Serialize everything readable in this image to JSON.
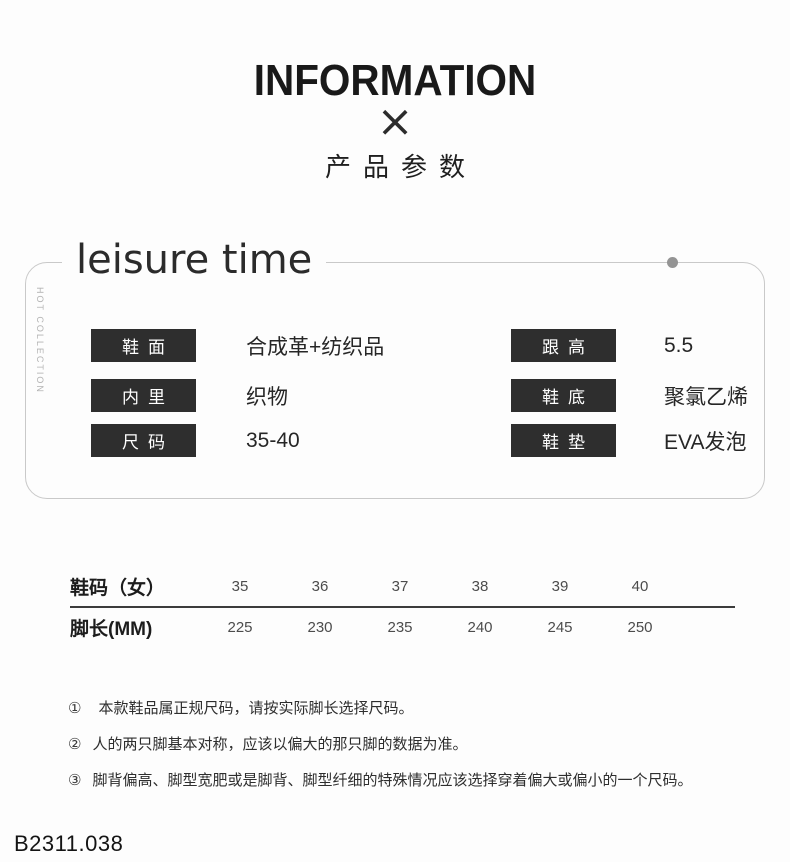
{
  "header": {
    "title": "INFORMATION",
    "x_mark": "×",
    "subtitle": "产品参数"
  },
  "card": {
    "heading": "leisure time",
    "side_label": "HOT COLLECTION",
    "specs_left": [
      {
        "label": "鞋面",
        "value": "合成革+纺织品"
      },
      {
        "label": "内里",
        "value": "织物"
      },
      {
        "label": "尺码",
        "value": "35-40"
      }
    ],
    "specs_right": [
      {
        "label": "跟高",
        "value": "5.5"
      },
      {
        "label": "鞋底",
        "value": "聚氯乙烯"
      },
      {
        "label": "鞋垫",
        "value": "EVA发泡"
      }
    ]
  },
  "size_table": {
    "rows": [
      {
        "label": "鞋码（女）",
        "values": [
          "35",
          "36",
          "37",
          "38",
          "39",
          "40"
        ]
      },
      {
        "label": "脚长(MM)",
        "values": [
          "225",
          "230",
          "235",
          "240",
          "245",
          "250"
        ]
      }
    ]
  },
  "notes": [
    {
      "num": "①",
      "text": "本款鞋品属正规尺码，请按实际脚长选择尺码。"
    },
    {
      "num": "②",
      "text": "人的两只脚基本对称，应该以偏大的那只脚的数据为准。"
    },
    {
      "num": "③",
      "text": "脚背偏高、脚型宽肥或是脚背、脚型纤细的特殊情况应该选择穿着偏大或偏小的一个尺码。"
    }
  ],
  "footer": {
    "code": "B2311.038"
  },
  "colors": {
    "label_box": "#2e2e2e",
    "accent_dot": "#949494",
    "card_border": "#c9c9c9"
  }
}
